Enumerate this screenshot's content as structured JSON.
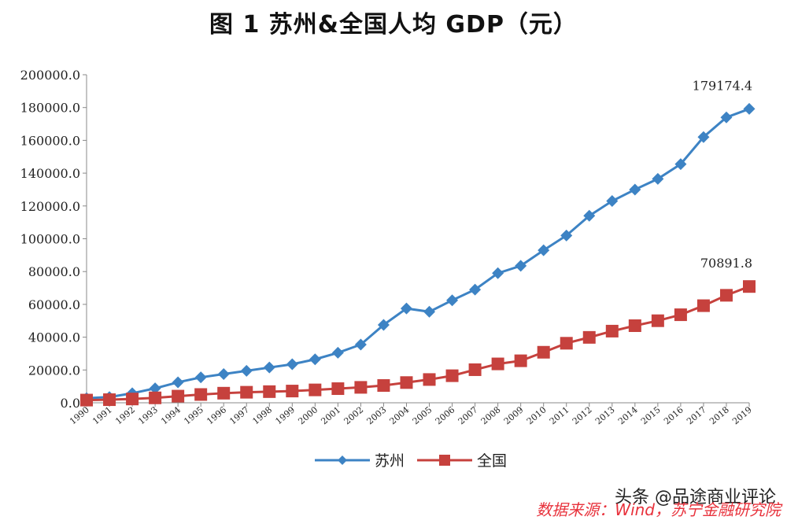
{
  "chart_data": {
    "type": "line",
    "title": "图 1   苏州&全国人均 GDP（元）",
    "categories": [
      "1990",
      "1991",
      "1992",
      "1993",
      "1994",
      "1995",
      "1996",
      "1997",
      "1998",
      "1999",
      "2000",
      "2001",
      "2002",
      "2003",
      "2004",
      "2005",
      "2006",
      "2007",
      "2008",
      "2009",
      "2010",
      "2011",
      "2012",
      "2013",
      "2014",
      "2015",
      "2016",
      "2017",
      "2018",
      "2019"
    ],
    "ylim": [
      0,
      200000
    ],
    "yticks": [
      "0.0",
      "20000.0",
      "40000.0",
      "60000.0",
      "80000.0",
      "100000.0",
      "120000.0",
      "140000.0",
      "160000.0",
      "180000.0",
      "200000.0"
    ],
    "grid": false,
    "legend": "bottom",
    "series": [
      {
        "name": "苏州",
        "color": "#3d83c4",
        "marker": "diamond",
        "values": [
          2800,
          3500,
          5800,
          8800,
          12500,
          15500,
          17500,
          19500,
          21500,
          23500,
          26500,
          30500,
          35500,
          47500,
          57500,
          55500,
          62500,
          69000,
          79000,
          83500,
          93000,
          102000,
          114000,
          123000,
          130000,
          136500,
          145500,
          162000,
          174000,
          179174.4
        ],
        "end_label": "179174.4"
      },
      {
        "name": "全国",
        "color": "#c6413d",
        "marker": "square",
        "values": [
          1644,
          1893,
          2311,
          2998,
          4044,
          5046,
          5846,
          6420,
          6796,
          7159,
          7858,
          8622,
          9398,
          10542,
          12336,
          14185,
          16500,
          20169,
          23708,
          25608,
          30808,
          36302,
          39874,
          43684,
          47005,
          50028,
          53680,
          59201,
          65534,
          70891.8
        ],
        "end_label": "70891.8"
      }
    ]
  },
  "watermark": "头条 @品途商业评论",
  "source": "数据来源：Wind，苏宁金融研究院"
}
